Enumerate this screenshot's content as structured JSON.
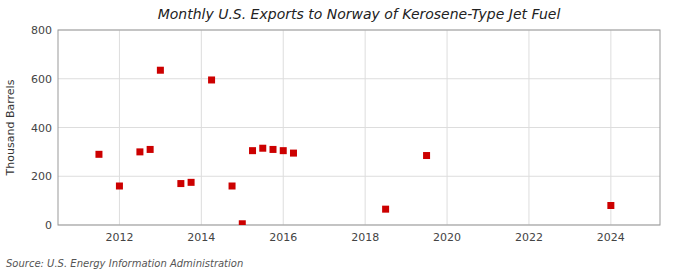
{
  "chart_data": {
    "type": "scatter",
    "title": "Monthly U.S. Exports to Norway of Kerosene-Type Jet Fuel",
    "ylabel": "Thousand Barrels",
    "annotation": "Source: U.S. Energy Information Administration",
    "x": [
      2011.5,
      2012.0,
      2012.5,
      2012.75,
      2013.0,
      2013.5,
      2013.75,
      2014.25,
      2014.75,
      2015.0,
      2015.25,
      2015.5,
      2015.75,
      2016.0,
      2016.25,
      2018.5,
      2019.5,
      2024.0
    ],
    "values": [
      290,
      160,
      300,
      310,
      635,
      170,
      175,
      595,
      160,
      5,
      305,
      315,
      310,
      305,
      295,
      65,
      285,
      80
    ],
    "color": "#cc0000",
    "marker": "square",
    "xlim": [
      2010.5,
      2025.2
    ],
    "ylim": [
      0,
      800
    ],
    "xticks": [
      2012,
      2014,
      2016,
      2018,
      2020,
      2022,
      2024
    ],
    "yticks": [
      0,
      200,
      400,
      600,
      800
    ],
    "grid": true
  }
}
